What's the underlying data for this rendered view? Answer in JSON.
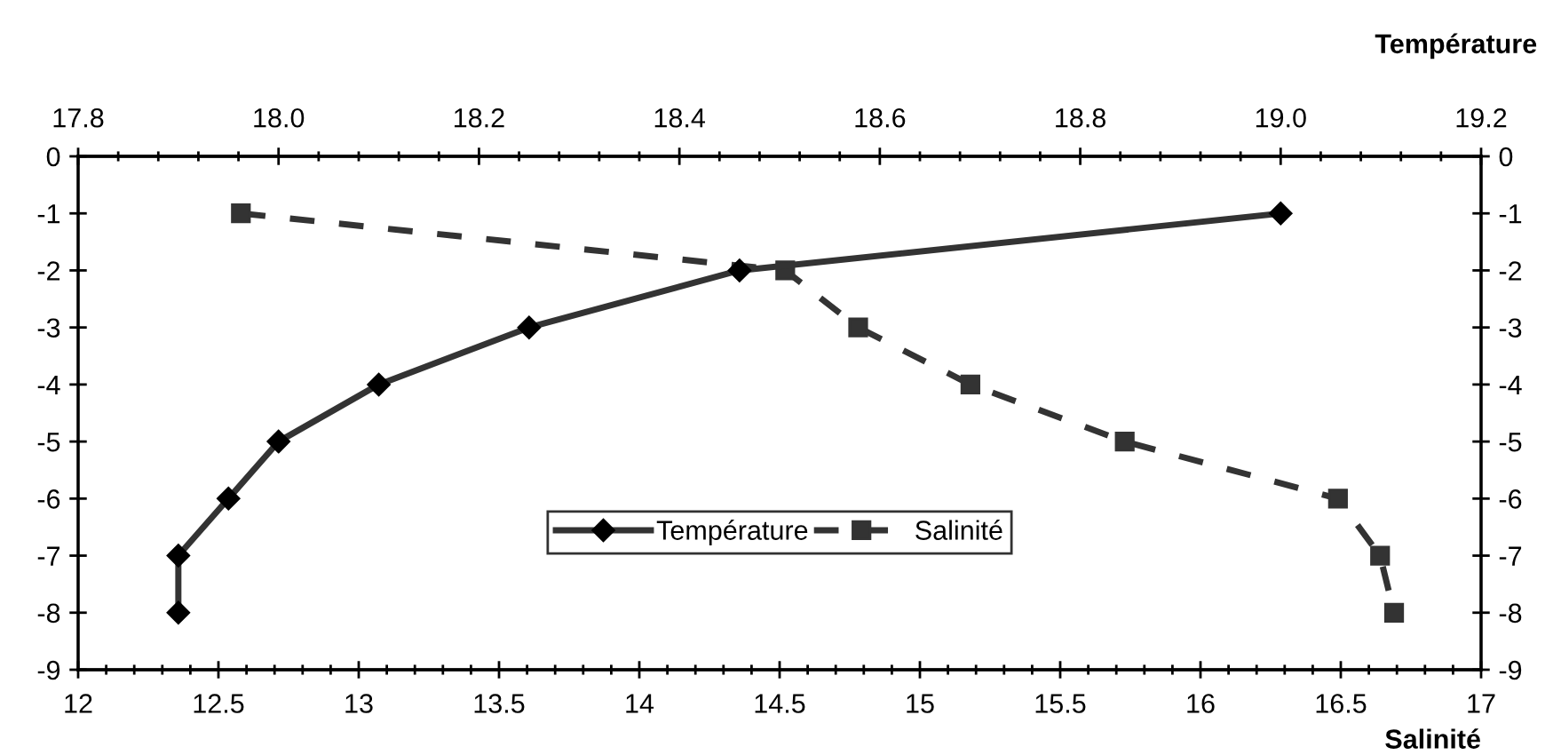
{
  "chart_data": {
    "type": "line",
    "xlabel": "Salinité",
    "x2label": "Température",
    "xlim": [
      12,
      17
    ],
    "xticks": [
      12,
      12.5,
      13,
      13.5,
      14,
      14.5,
      15,
      15.5,
      16,
      16.5,
      17
    ],
    "x2lim": [
      17.8,
      19.2
    ],
    "x2ticks": [
      17.8,
      {
        "value": 18,
        "label": "18.0"
      },
      18.2,
      18.4,
      18.6,
      18.8,
      {
        "value": 19,
        "label": "19.0"
      },
      19.2
    ],
    "ylim": [
      -9,
      0
    ],
    "yticks": [
      -9,
      -8,
      -7,
      -6,
      -5,
      -4,
      -3,
      -2,
      -1,
      0
    ],
    "y2lim": [
      -9,
      0
    ],
    "y2ticks": [
      -9,
      -8,
      -7,
      -6,
      -5,
      -4,
      -3,
      -2,
      -1,
      0
    ],
    "grid": false,
    "legend": "bottom",
    "series": [
      {
        "name": "Température",
        "axis": "x2",
        "color": "#333333",
        "marker": "diamond",
        "line_style": "solid",
        "x": [
          19.0,
          18.46,
          18.25,
          18.1,
          18.0,
          17.95,
          17.9,
          17.9
        ],
        "values": [
          -1,
          -2,
          -3,
          -4,
          -5,
          -6,
          -7,
          -8
        ]
      },
      {
        "name": "Salinité",
        "color": "#333333",
        "marker": "square",
        "line_style": "dashed",
        "x": [
          12.58,
          14.52,
          14.78,
          15.18,
          15.73,
          16.49,
          16.64,
          16.69
        ],
        "values": [
          -1,
          -2,
          -3,
          -4,
          -5,
          -6,
          -7,
          -8
        ]
      }
    ]
  }
}
